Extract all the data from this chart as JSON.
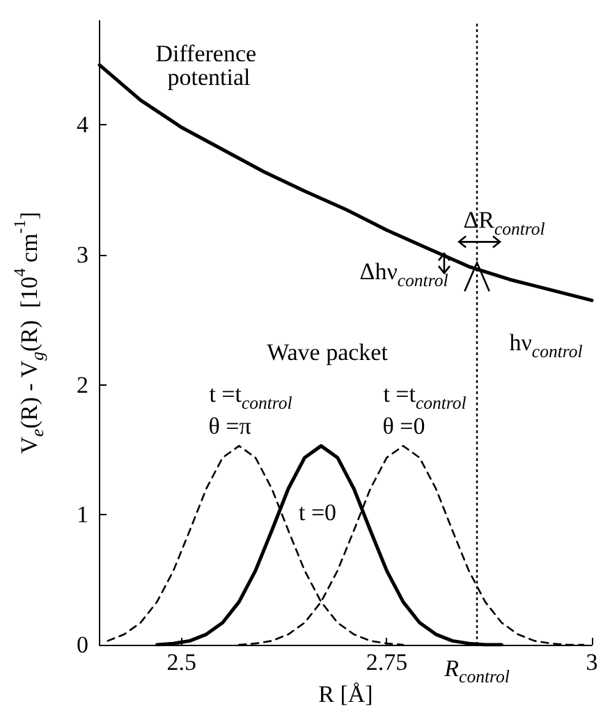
{
  "chart_data": {
    "type": "line",
    "xlabel": "R [Å]",
    "ylabel": "V$_{e}$(R) - V$_{g}$(R)  [10$^{4}$ cm$^{-1}$]",
    "xlim": [
      2.4,
      3.0
    ],
    "xticks": [
      2.5,
      2.75,
      3
    ],
    "ylim": [
      0,
      4.8
    ],
    "yticks": [
      0,
      1,
      2,
      3,
      4
    ],
    "grid": false,
    "marker": "none",
    "series": [
      {
        "color": "#000000",
        "line_style": "solid",
        "x": [
          2.4,
          2.45,
          2.5,
          2.55,
          2.6,
          2.65,
          2.7,
          2.75,
          2.8,
          2.85,
          2.9,
          2.95,
          3.0
        ],
        "values": [
          4.46,
          4.19,
          3.98,
          3.81,
          3.64,
          3.49,
          3.35,
          3.19,
          3.05,
          2.91,
          2.81,
          2.73,
          2.65
        ]
      },
      {
        "color": "#000000",
        "line_style": "dashed",
        "x": [
          2.41,
          2.43,
          2.45,
          2.47,
          2.49,
          2.51,
          2.53,
          2.55,
          2.57,
          2.59,
          2.61,
          2.63,
          2.65,
          2.67,
          2.69,
          2.71,
          2.73,
          2.75,
          2.77
        ],
        "values": [
          0.03,
          0.08,
          0.17,
          0.33,
          0.57,
          0.88,
          1.2,
          1.44,
          1.53,
          1.44,
          1.2,
          0.88,
          0.57,
          0.33,
          0.17,
          0.08,
          0.03,
          0.01,
          0
        ]
      },
      {
        "color": "#000000",
        "line_style": "solid",
        "x": [
          2.47,
          2.49,
          2.51,
          2.53,
          2.55,
          2.57,
          2.59,
          2.61,
          2.63,
          2.65,
          2.67,
          2.69,
          2.71,
          2.73,
          2.75,
          2.77,
          2.79,
          2.81,
          2.83,
          2.85,
          2.87,
          2.89
        ],
        "values": [
          0,
          0.01,
          0.03,
          0.08,
          0.17,
          0.33,
          0.57,
          0.88,
          1.2,
          1.44,
          1.53,
          1.44,
          1.2,
          0.88,
          0.57,
          0.33,
          0.17,
          0.08,
          0.03,
          0.01,
          0,
          0
        ]
      },
      {
        "color": "#000000",
        "line_style": "dashed",
        "x": [
          2.57,
          2.59,
          2.61,
          2.63,
          2.65,
          2.67,
          2.69,
          2.71,
          2.73,
          2.75,
          2.77,
          2.79,
          2.81,
          2.83,
          2.85,
          2.87,
          2.89,
          2.91,
          2.93,
          2.95,
          2.97,
          2.99
        ],
        "values": [
          0,
          0.01,
          0.03,
          0.08,
          0.17,
          0.33,
          0.57,
          0.88,
          1.2,
          1.44,
          1.53,
          1.44,
          1.2,
          0.88,
          0.57,
          0.33,
          0.17,
          0.08,
          0.03,
          0.01,
          0,
          0
        ]
      }
    ],
    "ref_lines": [
      {
        "axis": "x",
        "value": 2.86,
        "label": "R$_{control}$",
        "line_style": "dotted",
        "color": "#000000"
      }
    ],
    "annotations": [
      "Difference potential",
      "Wave packet",
      "t =t$_{control}$",
      "θ =π",
      "t =t$_{control}$",
      "θ =0",
      "t =0",
      "ΔR$_{control}$",
      "Δhν$_{control}$",
      "hν$_{control}$"
    ]
  }
}
